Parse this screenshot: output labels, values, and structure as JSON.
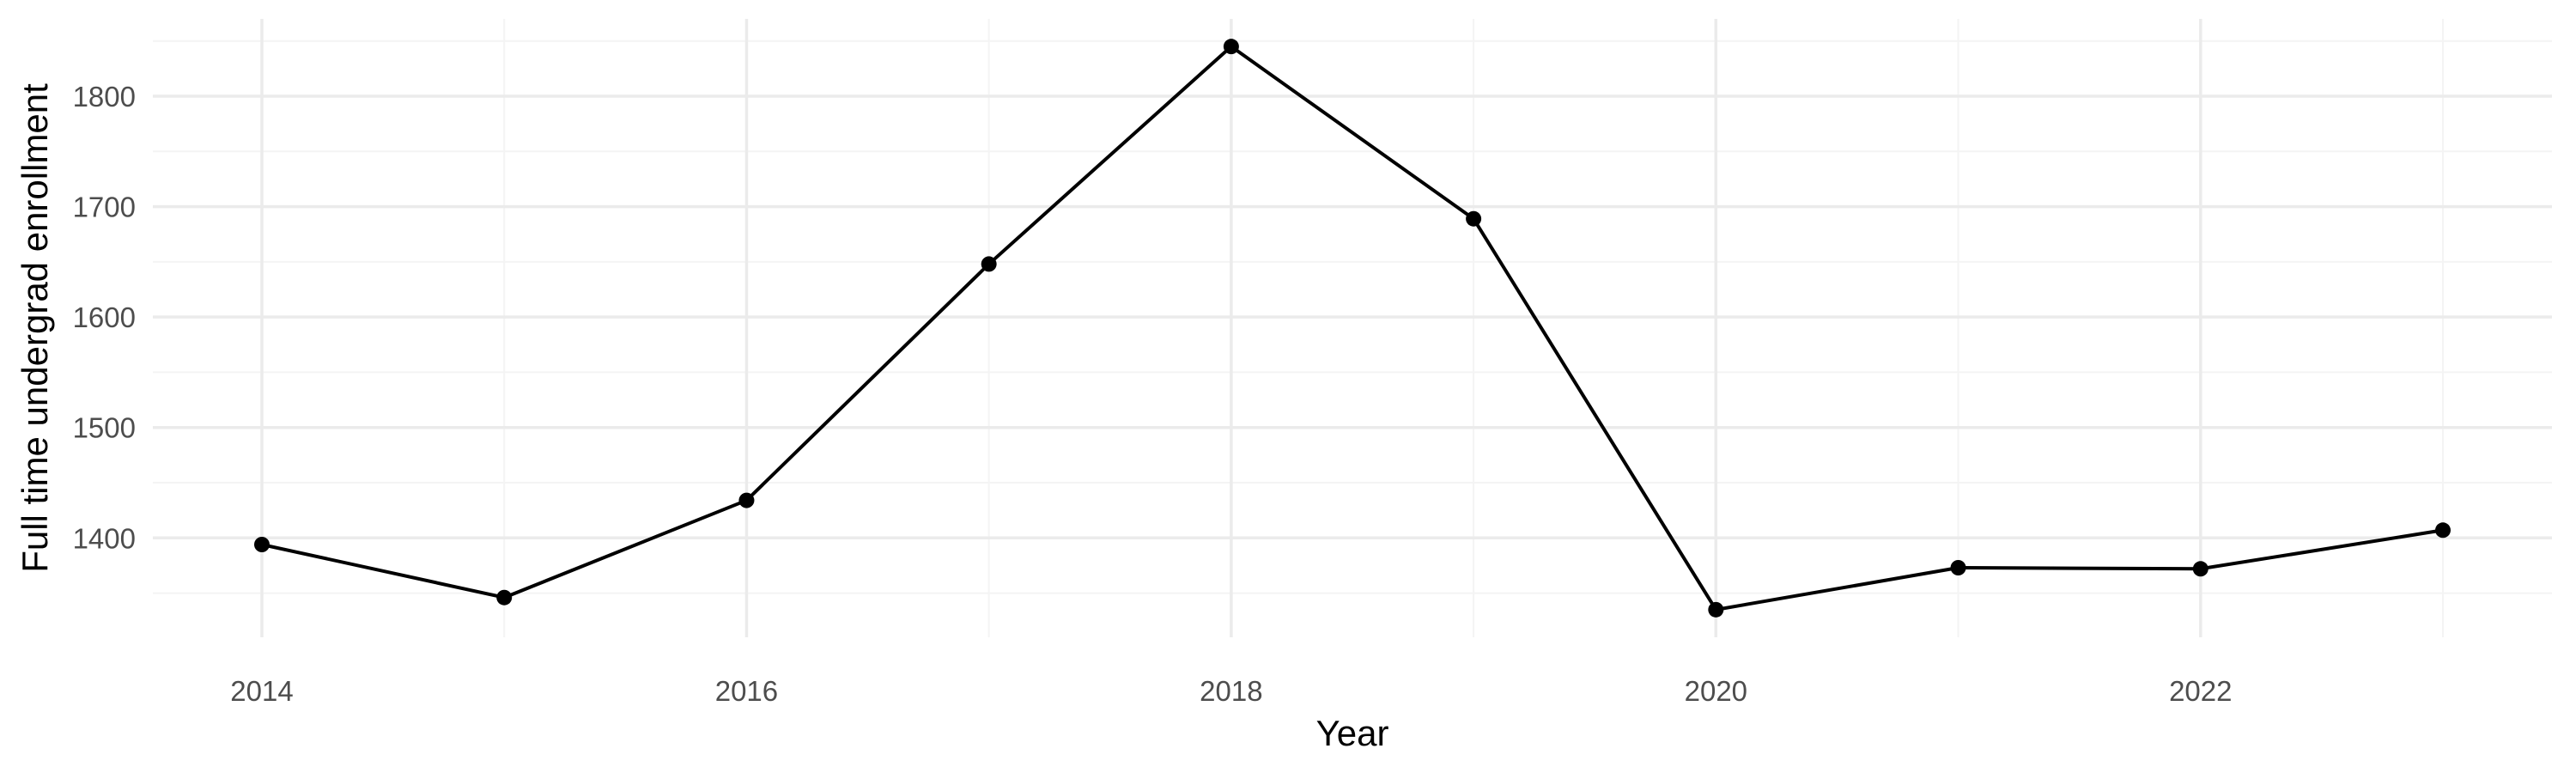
{
  "chart_data": {
    "type": "line",
    "title": "",
    "xlabel": "Year",
    "ylabel": "Full time undergrad enrollment",
    "x": [
      2014,
      2015,
      2016,
      2017,
      2018,
      2019,
      2020,
      2021,
      2022,
      2023
    ],
    "series": [
      {
        "values": [
          1394,
          1346,
          1434,
          1648,
          1845,
          1689,
          1335,
          1373,
          1372,
          1407
        ]
      }
    ],
    "xlim": [
      2013.55,
      2023.45
    ],
    "ylim": [
      1310,
      1870
    ],
    "x_ticks": [
      2014,
      2016,
      2018,
      2020,
      2022
    ],
    "x_tick_labels": [
      "2014",
      "2016",
      "2018",
      "2020",
      "2022"
    ],
    "y_ticks": [
      1400,
      1500,
      1600,
      1700,
      1800
    ],
    "y_tick_labels": [
      "1400",
      "1500",
      "1600",
      "1700",
      "1800"
    ],
    "x_minor_gridlines": [
      2015,
      2017,
      2019,
      2021,
      2023
    ],
    "y_minor_gridlines": [
      1350,
      1450,
      1550,
      1650,
      1750,
      1850
    ],
    "grid": true,
    "legend": "none",
    "colors": {
      "line": "#000000",
      "point": "#000000",
      "grid_major": "#ebebeb",
      "grid_minor": "#f4f4f4",
      "tick_text": "#4d4d4d",
      "title_text": "#000000"
    }
  }
}
